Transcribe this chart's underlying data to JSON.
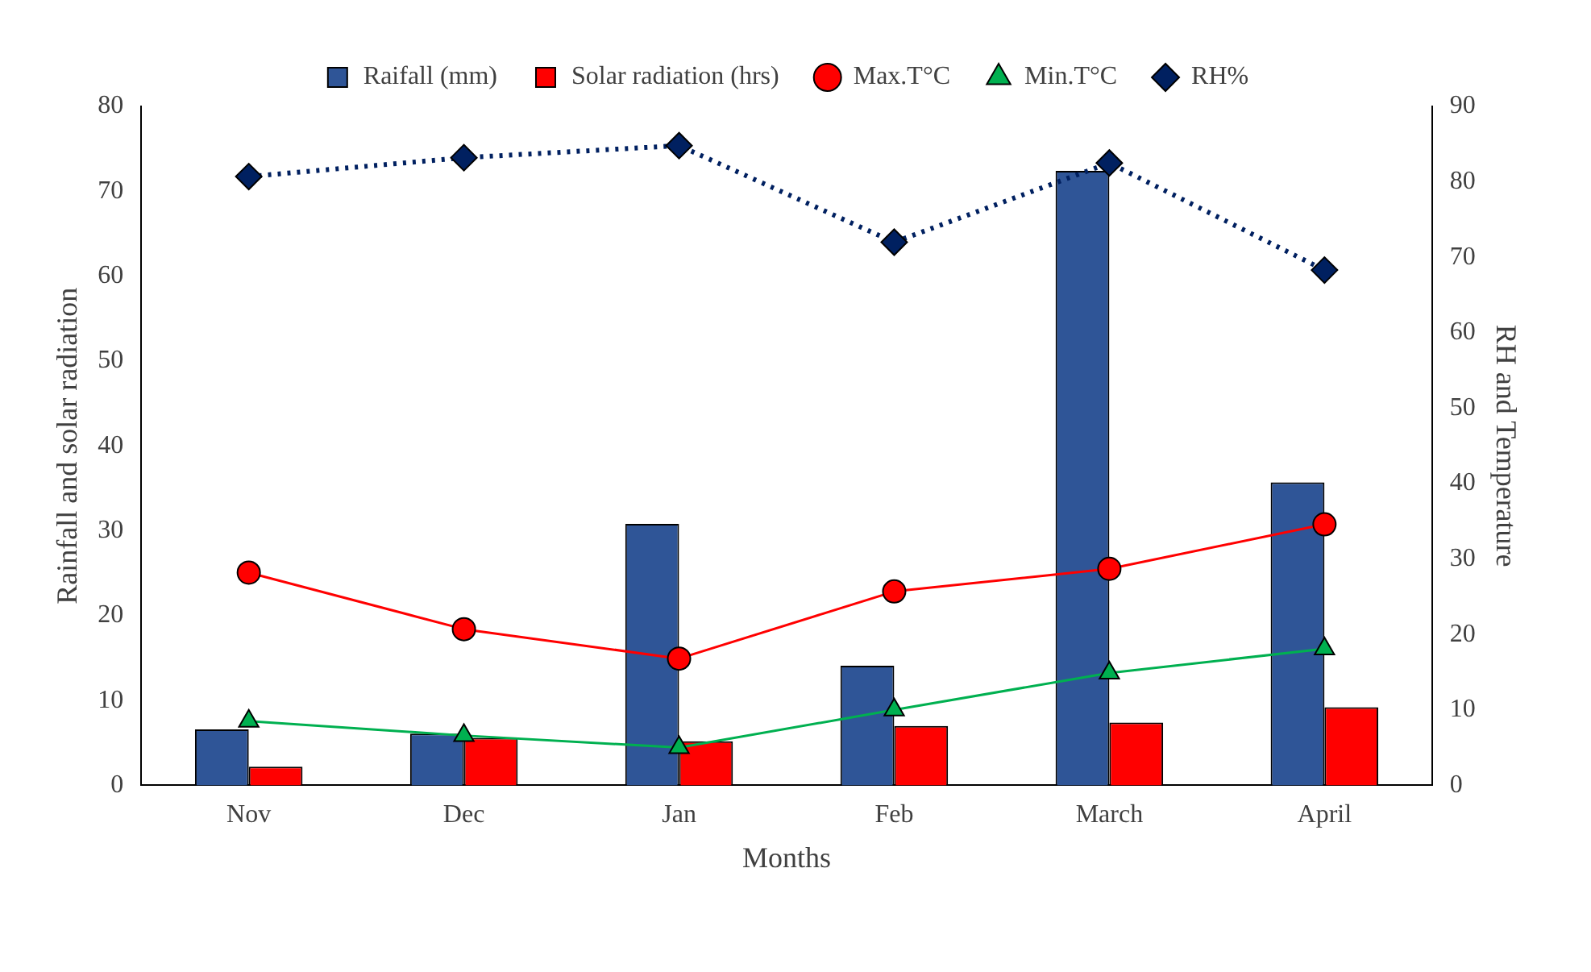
{
  "chart_data": {
    "type": "bar",
    "xlabel": "Months",
    "ylabel": "Rainfall and solar radiation",
    "y2label": "RH and Temperature",
    "categories": [
      "Nov",
      "Dec",
      "Jan",
      "Feb",
      "March",
      "April"
    ],
    "series": [
      {
        "name": "Raifall (mm)",
        "color": "#2f5597",
        "values": [
          6.6,
          6.1,
          30.8,
          14.1,
          72.4,
          35.7
        ]
      },
      {
        "name": "Solar radiation (hrs)",
        "color": "#ff0000",
        "values": [
          2.2,
          5.6,
          5.2,
          7.0,
          7.4,
          9.2
        ]
      },
      {
        "name": "Max.T°C",
        "type": "line",
        "axis": "y2",
        "color": "#ff0000",
        "marker": "circle",
        "line_style": "solid",
        "values": [
          28.2,
          20.7,
          16.8,
          25.7,
          28.7,
          34.6
        ]
      },
      {
        "name": "Min.T°C",
        "type": "line",
        "axis": "y2",
        "color": "#00b050",
        "marker": "triangle",
        "line_style": "solid",
        "values": [
          8.5,
          6.6,
          5.0,
          10.0,
          14.9,
          18.1
        ]
      },
      {
        "name": "RH%",
        "type": "line",
        "axis": "y2",
        "color": "#002060",
        "marker": "diamond",
        "line_style": "dotted",
        "values": [
          80.7,
          83.2,
          84.8,
          72.0,
          82.5,
          68.3
        ]
      }
    ],
    "ylim": [
      0,
      80
    ],
    "yticks": [
      0,
      10,
      20,
      30,
      40,
      50,
      60,
      70,
      80
    ],
    "y2lim": [
      0,
      90
    ],
    "y2ticks": [
      0,
      10,
      20,
      30,
      40,
      50,
      60,
      70,
      80,
      90
    ],
    "grid": false,
    "legend": "top"
  }
}
